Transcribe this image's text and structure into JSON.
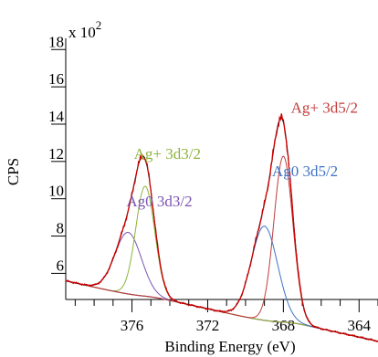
{
  "chart_data": {
    "type": "line",
    "title": "",
    "xlabel": "Binding Energy (eV)",
    "ylabel": "CPS",
    "y_scale_label": "x 10",
    "y_scale_exponent": "2",
    "x_reversed": true,
    "xlim": [
      379.5,
      363.0
    ],
    "ylim": [
      4.6,
      18.6
    ],
    "x_ticks": [
      376,
      372,
      368,
      364
    ],
    "x_tick_labels": [
      "376",
      "372",
      "368",
      "364"
    ],
    "y_ticks": [
      6,
      8,
      10,
      12,
      14,
      16,
      18
    ],
    "y_tick_labels": [
      "6",
      "8",
      "10",
      "12",
      "14",
      "16",
      "18"
    ],
    "grid": false,
    "background": {
      "a0": 5.6,
      "a1": 0.2245,
      "x_ref": 379.5,
      "step_ratio": 0.02
    },
    "components": [
      {
        "label": "Ag0 3d3/2",
        "center": 376.2,
        "amplitude": 3.3,
        "sigma": 0.7,
        "color": "#7b54b2"
      },
      {
        "label": "Ag+ 3d3/2",
        "center": 375.3,
        "amplitude": 5.9,
        "sigma": 0.5,
        "color": "#8cb33c"
      },
      {
        "label": "Ag0 3d5/2",
        "center": 369.0,
        "amplitude": 5.05,
        "sigma": 0.7,
        "color": "#3f72c2"
      },
      {
        "label": "Ag+ 3d5/2",
        "center": 368.0,
        "amplitude": 8.9,
        "sigma": 0.5,
        "color": "#c23b3b"
      }
    ],
    "envelope_color": "#cc0000",
    "background_color": "#8b4513",
    "annotations": [
      {
        "text": "Ag+ 3d3/2",
        "x": 375.9,
        "y": 12.15,
        "color": "#8cb33c"
      },
      {
        "text": "Ag0 3d3/2",
        "x": 376.3,
        "y": 9.6,
        "color": "#7b54b2"
      },
      {
        "text": "Ag0 3d5/2",
        "x": 368.6,
        "y": 11.2,
        "color": "#3f72c2"
      },
      {
        "text": "Ag+ 3d5/2",
        "x": 367.6,
        "y": 14.6,
        "color": "#c23b3b"
      }
    ]
  }
}
